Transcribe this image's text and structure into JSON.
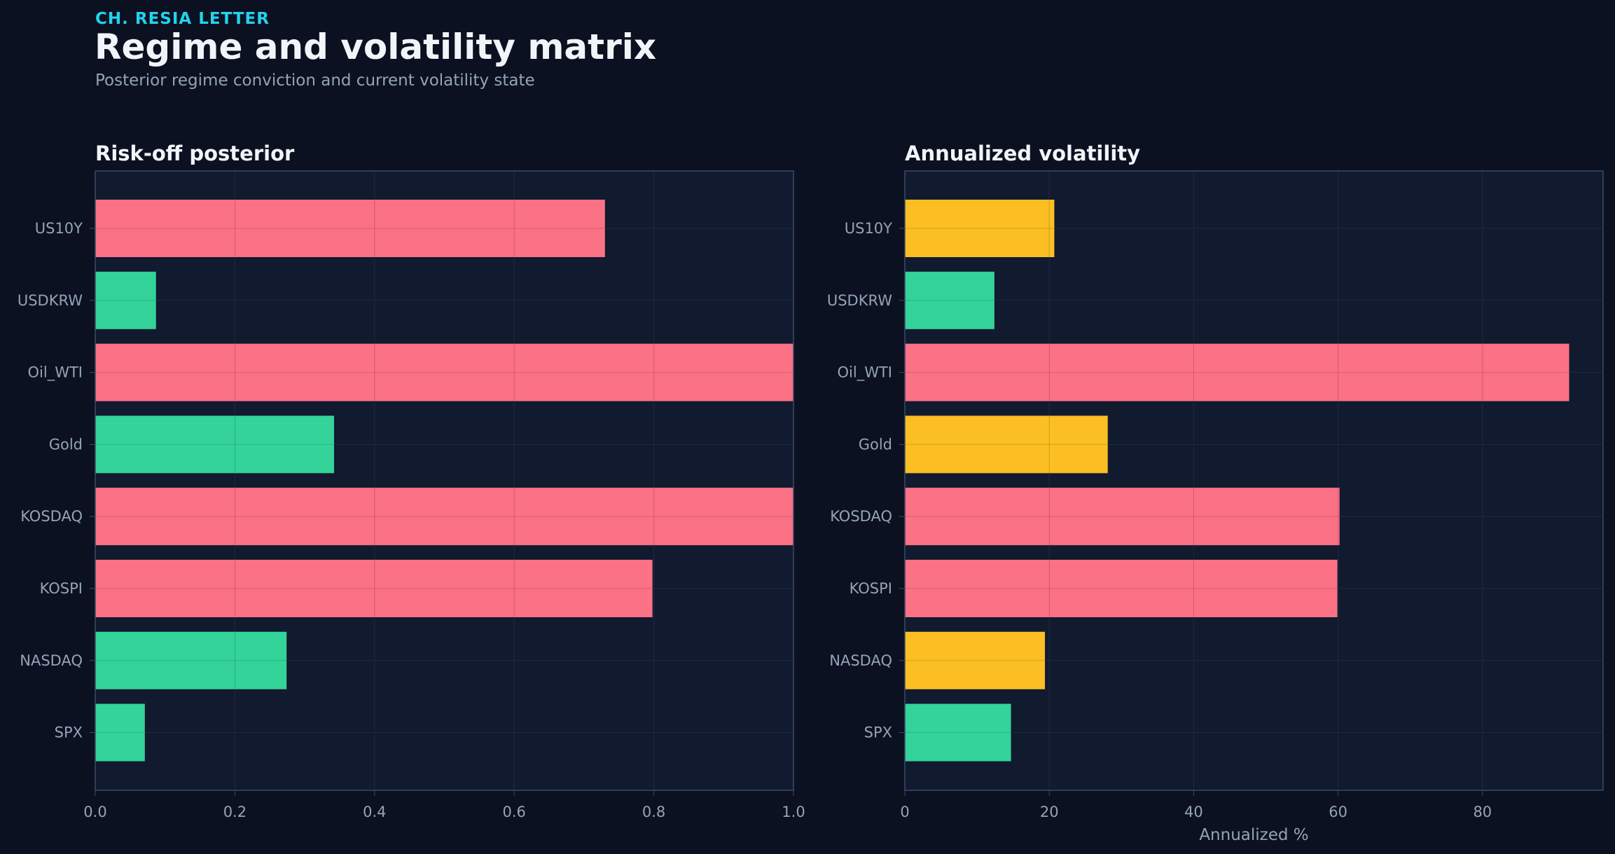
{
  "header": {
    "kicker": "CH. RESIA LETTER",
    "title": "Regime and volatility matrix",
    "subtitle": "Posterior regime conviction and current volatility state"
  },
  "colors": {
    "background": "#0b1120",
    "panel": "#111a2e",
    "frame": "#3b4a6b",
    "grid": "#26324a",
    "risk_off": "#fb7185",
    "neutral": "#fbbf24",
    "risk_on": "#34d399",
    "label": "#94a3b8",
    "title": "#f1f5f9"
  },
  "chart_data": [
    {
      "type": "bar",
      "orientation": "horizontal",
      "title": "Risk-off posterior",
      "xlabel": "",
      "categories": [
        "US10Y",
        "USDKRW",
        "Oil_WTI",
        "Gold",
        "KOSDAQ",
        "KOSPI",
        "NASDAQ",
        "SPX"
      ],
      "values": [
        0.73,
        0.087,
        1.0,
        0.342,
        1.0,
        0.798,
        0.274,
        0.071
      ],
      "colors": [
        "risk_off",
        "risk_on",
        "risk_off",
        "risk_on",
        "risk_off",
        "risk_off",
        "risk_on",
        "risk_on"
      ],
      "xlim": [
        0,
        1.0
      ],
      "xticks": [
        "0.0",
        "0.2",
        "0.4",
        "0.6",
        "0.8",
        "1.0"
      ],
      "xtick_values": [
        0,
        0.2,
        0.4,
        0.6,
        0.8,
        1.0
      ],
      "grid": true
    },
    {
      "type": "bar",
      "orientation": "horizontal",
      "title": "Annualized volatility",
      "xlabel": "Annualized %",
      "categories": [
        "US10Y",
        "USDKRW",
        "Oil_WTI",
        "Gold",
        "KOSDAQ",
        "KOSPI",
        "NASDAQ",
        "SPX"
      ],
      "values": [
        20.7,
        12.4,
        92.0,
        28.1,
        60.2,
        59.9,
        19.4,
        14.7
      ],
      "colors": [
        "neutral",
        "risk_on",
        "risk_off",
        "neutral",
        "risk_off",
        "risk_off",
        "neutral",
        "risk_on"
      ],
      "xlim": [
        0,
        96.7
      ],
      "xticks": [
        "0",
        "20",
        "40",
        "60",
        "80"
      ],
      "xtick_values": [
        0,
        20,
        40,
        60,
        80
      ],
      "grid": true
    }
  ]
}
